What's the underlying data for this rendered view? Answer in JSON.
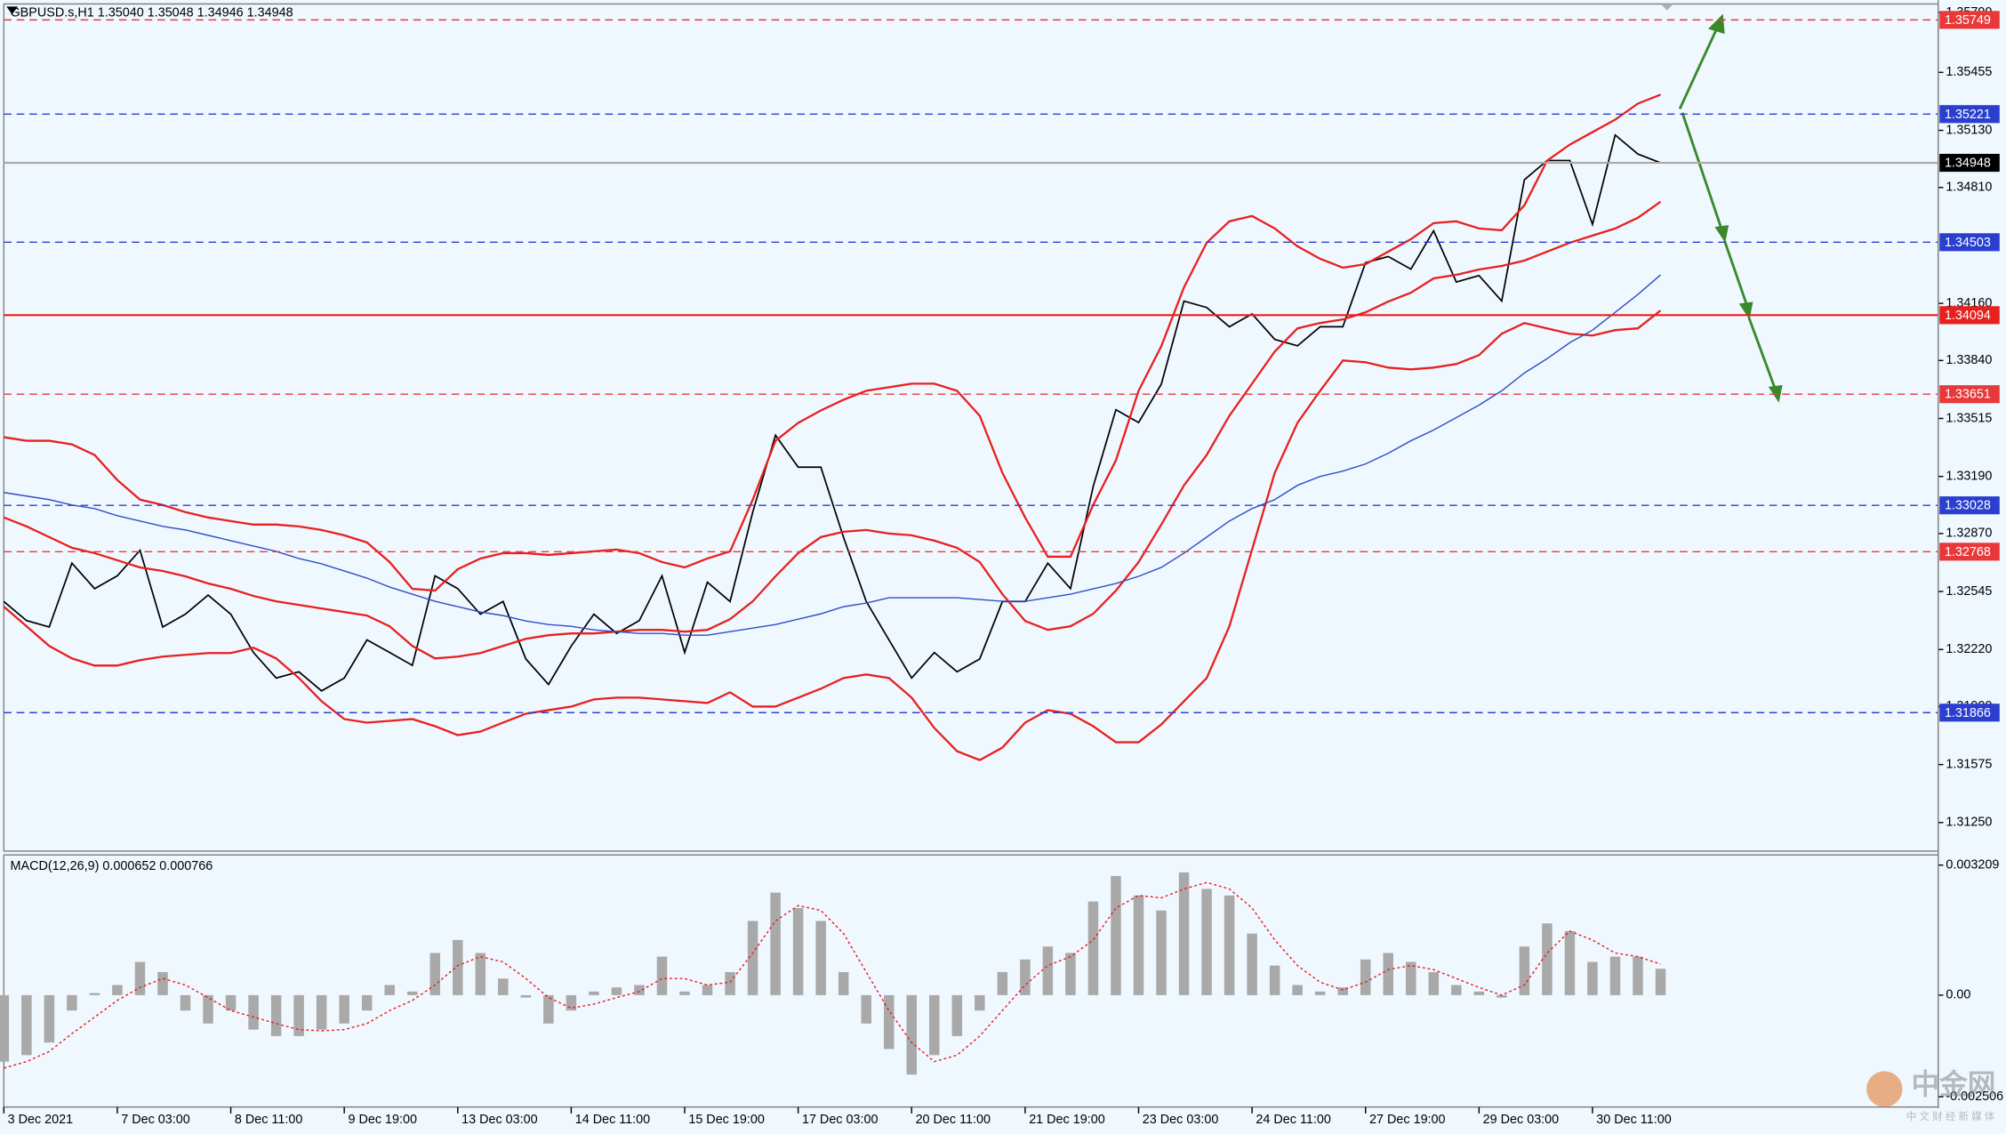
{
  "chart_data": [
    {
      "type": "line",
      "title": "GBPUSD.s,H1  1.35040 1.35048 1.34946 1.34948",
      "categories": [
        "3 Dec 2021",
        null,
        null,
        null,
        null,
        "7 Dec 03:00",
        null,
        null,
        null,
        null,
        "8 Dec 11:00",
        null,
        null,
        null,
        null,
        "9 Dec 19:00",
        null,
        null,
        null,
        null,
        "13 Dec 03:00",
        null,
        null,
        null,
        null,
        "14 Dec 11:00",
        null,
        null,
        null,
        null,
        "15 Dec 19:00",
        null,
        null,
        null,
        null,
        "17 Dec 03:00",
        null,
        null,
        null,
        null,
        "20 Dec 11:00",
        null,
        null,
        null,
        null,
        "21 Dec 19:00",
        null,
        null,
        null,
        null,
        "23 Dec 03:00",
        null,
        null,
        null,
        null,
        "24 Dec 11:00",
        null,
        null,
        null,
        null,
        "27 Dec 19:00",
        null,
        null,
        null,
        null,
        "29 Dec 03:00",
        null,
        null,
        null,
        null,
        "30 Dec 11:00",
        null,
        null,
        null
      ],
      "series": [
        {
          "color": "#000000",
          "width": 1.2,
          "values": [
            1.32489,
            1.32382,
            1.32346,
            1.32704,
            1.32561,
            1.32633,
            1.32776,
            1.32346,
            1.32418,
            1.32525,
            1.32418,
            1.32203,
            1.3206,
            1.32095,
            1.31988,
            1.3206,
            1.32274,
            1.32203,
            1.32131,
            1.32633,
            1.32561,
            1.32418,
            1.32489,
            1.32167,
            1.32024,
            1.32239,
            1.32418,
            1.3231,
            1.32382,
            1.32633,
            1.32203,
            1.32597,
            1.32489,
            1.32991,
            1.33421,
            1.33242,
            1.33242,
            1.32848,
            1.32489,
            1.32274,
            1.3206,
            1.32203,
            1.32095,
            1.32167,
            1.32489,
            1.32489,
            1.32704,
            1.32561,
            1.33134,
            1.33564,
            1.33492,
            1.33707,
            1.34173,
            1.34137,
            1.34029,
            1.34101,
            1.33958,
            1.33922,
            1.34029,
            1.34029,
            1.34388,
            1.34423,
            1.34352,
            1.34567,
            1.3428,
            1.34316,
            1.34173,
            1.34853,
            1.34961,
            1.34961,
            1.34603,
            1.35104,
            1.34997,
            1.34948
          ]
        },
        {
          "color": "#e8201e",
          "width": 1.6,
          "values": [
            1.3341,
            1.3339,
            1.3339,
            1.3337,
            1.3331,
            1.3317,
            1.3306,
            1.3303,
            1.3299,
            1.3296,
            1.3294,
            1.3292,
            1.3292,
            1.3291,
            1.3289,
            1.3286,
            1.3282,
            1.3271,
            1.3256,
            1.3255,
            1.3267,
            1.3273,
            1.3276,
            1.3276,
            1.3275,
            1.3276,
            1.3277,
            1.3278,
            1.3276,
            1.3271,
            1.3268,
            1.3273,
            1.3277,
            1.3306,
            1.3339,
            1.3349,
            1.3356,
            1.3362,
            1.3367,
            1.3369,
            1.3371,
            1.3371,
            1.3367,
            1.3353,
            1.3321,
            1.3296,
            1.3274,
            1.3274,
            1.3303,
            1.3328,
            1.3367,
            1.3392,
            1.3425,
            1.345,
            1.3462,
            1.3465,
            1.3458,
            1.3448,
            1.3441,
            1.3436,
            1.3438,
            1.3445,
            1.3452,
            1.3461,
            1.3462,
            1.3458,
            1.3457,
            1.3471,
            1.3496,
            1.3505,
            1.3512,
            1.3519,
            1.3528,
            1.3533
          ]
        },
        {
          "color": "#e8201e",
          "width": 1.6,
          "values": [
            1.3296,
            1.3291,
            1.3285,
            1.3279,
            1.3276,
            1.3272,
            1.3268,
            1.3266,
            1.3263,
            1.3259,
            1.3256,
            1.3252,
            1.3249,
            1.3247,
            1.3245,
            1.3243,
            1.3241,
            1.3235,
            1.3224,
            1.3217,
            1.3218,
            1.322,
            1.3224,
            1.3228,
            1.323,
            1.3231,
            1.3231,
            1.3232,
            1.3233,
            1.3233,
            1.3232,
            1.3233,
            1.3239,
            1.3249,
            1.3263,
            1.3276,
            1.3285,
            1.3288,
            1.3289,
            1.3287,
            1.3286,
            1.3283,
            1.3279,
            1.3271,
            1.3253,
            1.3238,
            1.3233,
            1.3235,
            1.3242,
            1.3255,
            1.3271,
            1.3292,
            1.3314,
            1.3331,
            1.3353,
            1.3371,
            1.3389,
            1.3402,
            1.3405,
            1.3407,
            1.3411,
            1.3417,
            1.3422,
            1.343,
            1.3432,
            1.3435,
            1.3437,
            1.344,
            1.3445,
            1.345,
            1.3454,
            1.3458,
            1.3464,
            1.3473
          ]
        },
        {
          "color": "#e8201e",
          "width": 1.6,
          "values": [
            1.3246,
            1.3235,
            1.3224,
            1.3217,
            1.3213,
            1.3213,
            1.3216,
            1.3218,
            1.3219,
            1.322,
            1.322,
            1.3223,
            1.3217,
            1.3206,
            1.3193,
            1.3183,
            1.3181,
            1.3182,
            1.3183,
            1.3179,
            1.3174,
            1.3176,
            1.3181,
            1.3186,
            1.3188,
            1.319,
            1.3194,
            1.3195,
            1.3195,
            1.3194,
            1.3193,
            1.3192,
            1.3198,
            1.319,
            1.319,
            1.3195,
            1.32,
            1.3206,
            1.3208,
            1.3206,
            1.3195,
            1.3178,
            1.3165,
            1.316,
            1.3167,
            1.3181,
            1.3188,
            1.3186,
            1.3179,
            1.317,
            1.317,
            1.318,
            1.3193,
            1.3206,
            1.3235,
            1.3278,
            1.3321,
            1.3349,
            1.3367,
            1.3384,
            1.3383,
            1.338,
            1.3379,
            1.338,
            1.3382,
            1.3387,
            1.3399,
            1.3405,
            1.3402,
            1.3399,
            1.3398,
            1.3401,
            1.3402,
            1.3412
          ]
        },
        {
          "color": "#2f4fc8",
          "width": 1,
          "values": [
            1.331,
            1.3308,
            1.3306,
            1.3303,
            1.3301,
            1.3297,
            1.3294,
            1.3291,
            1.3289,
            1.3286,
            1.3283,
            1.328,
            1.3277,
            1.3273,
            1.327,
            1.3266,
            1.3262,
            1.3257,
            1.3253,
            1.3249,
            1.3246,
            1.3243,
            1.3241,
            1.3238,
            1.3236,
            1.3235,
            1.3233,
            1.3232,
            1.3231,
            1.3231,
            1.323,
            1.323,
            1.3232,
            1.3234,
            1.3236,
            1.3239,
            1.3242,
            1.3246,
            1.3248,
            1.3251,
            1.3251,
            1.3251,
            1.3251,
            1.325,
            1.3249,
            1.3249,
            1.3251,
            1.3253,
            1.3256,
            1.3259,
            1.3263,
            1.3268,
            1.3276,
            1.3285,
            1.3294,
            1.3301,
            1.3306,
            1.3314,
            1.3319,
            1.3322,
            1.3326,
            1.3332,
            1.3339,
            1.3345,
            1.3352,
            1.3359,
            1.3367,
            1.3377,
            1.3385,
            1.3394,
            1.3401,
            1.3411,
            1.3421,
            1.3432
          ]
        }
      ],
      "ylim": [
        1.3109,
        1.3586
      ],
      "yticks": [
        {
          "value": 1.3579,
          "label": "1.35790"
        },
        1.35455,
        {
          "value": 1.3513,
          "label": "1.35130"
        },
        {
          "value": 1.3481,
          "label": "1.34810"
        },
        {
          "value": 1.3416,
          "label": "1.34160"
        },
        {
          "value": 1.3384,
          "label": "1.33840"
        },
        1.33515,
        {
          "value": 1.3319,
          "label": "1.33190"
        },
        {
          "value": 1.3287,
          "label": "1.32870"
        },
        1.32545,
        {
          "value": 1.3222,
          "label": "1.32220"
        },
        {
          "value": 1.319,
          "label": "1.31900"
        },
        1.31575,
        {
          "value": 1.3125,
          "label": "1.31250"
        }
      ],
      "levels": [
        {
          "value": 1.35749,
          "color": "#e8393a",
          "dashed": true
        },
        {
          "value": 1.35221,
          "color": "#2b3fcf",
          "dashed": true
        },
        {
          "value": 1.34948,
          "color": "#a8a8a8",
          "dashed": false,
          "label_color": "#000000"
        },
        {
          "value": 1.34503,
          "color": "#2b3fcf",
          "dashed": true
        },
        {
          "value": 1.34094,
          "color": "#e8201e",
          "dashed": false
        },
        {
          "value": 1.33651,
          "color": "#e8393a",
          "dashed": true
        },
        {
          "value": 1.33028,
          "color": "#2b3fcf",
          "dashed": true
        },
        {
          "value": 1.32768,
          "color": "#e8393a",
          "dashed": true
        },
        {
          "value": 1.31866,
          "color": "#2b3fcf",
          "dashed": true
        }
      ]
    },
    {
      "type": "macd",
      "title": "MACD(12,26,9) 0.000652 0.000766",
      "series": [
        {
          "type": "bar",
          "color": "#a9a9a9",
          "values": [
            -0.00164,
            -0.00148,
            -0.00117,
            -0.00038,
            5e-05,
            0.00025,
            0.00082,
            0.00057,
            -0.00038,
            -0.0007,
            -0.00038,
            -0.00085,
            -0.00101,
            -0.00101,
            -0.00085,
            -0.0007,
            -0.00038,
            0.00025,
            9e-05,
            0.00104,
            0.00136,
            0.00104,
            0.00041,
            -6e-05,
            -0.0007,
            -0.00038,
            9e-05,
            0.00019,
            0.00025,
            0.00095,
            9e-05,
            0.00025,
            0.00057,
            0.00183,
            0.00253,
            0.00215,
            0.00183,
            0.00057,
            -0.0007,
            -0.00133,
            -0.00196,
            -0.00148,
            -0.00101,
            -0.00038,
            0.00057,
            0.00088,
            0.0012,
            0.00104,
            0.00231,
            0.00294,
            0.00246,
            0.00209,
            0.00303,
            0.00262,
            0.00246,
            0.00152,
            0.00073,
            0.00025,
            9e-05,
            0.00019,
            0.00088,
            0.00104,
            0.00082,
            0.00057,
            0.00025,
            9e-05,
            -6e-05,
            0.0012,
            0.00177,
            0.00158,
            0.00082,
            0.00095,
            0.00095,
            0.000652
          ]
        },
        {
          "type": "line",
          "color": "#e8201e",
          "values": [
            -0.0018,
            -0.00164,
            -0.00139,
            -0.00095,
            -0.00054,
            -0.00013,
            0.00019,
            0.00041,
            0.00025,
            -6e-05,
            -0.00038,
            -0.00054,
            -0.0007,
            -0.00085,
            -0.00088,
            -0.00085,
            -0.0007,
            -0.00038,
            -0.00013,
            0.00025,
            0.00073,
            0.00095,
            0.00082,
            0.00041,
            -6e-05,
            -0.00032,
            -0.00022,
            -6e-05,
            9e-05,
            0.00041,
            0.00041,
            0.00025,
            0.00032,
            0.00104,
            0.00183,
            0.00221,
            0.00209,
            0.00152,
            0.00057,
            -0.00038,
            -0.00117,
            -0.00164,
            -0.00148,
            -0.00101,
            -0.00038,
            0.00025,
            0.00073,
            0.00095,
            0.00136,
            0.00215,
            0.00246,
            0.0024,
            0.00262,
            0.00278,
            0.00262,
            0.00215,
            0.00136,
            0.00073,
            0.00032,
            0.00013,
            0.00032,
            0.00063,
            0.00073,
            0.00063,
            0.00041,
            0.00019,
            0,
            0.00025,
            0.00104,
            0.00158,
            0.00136,
            0.00104,
            0.00095,
            0.000766
          ]
        }
      ],
      "ylim": [
        -0.00276,
        0.00346
      ],
      "yticks": [
        0.003209,
        {
          "value": 0,
          "label": "0.00"
        },
        -0.002506
      ]
    }
  ],
  "watermark": {
    "text": "中金网",
    "subtext": "中 文 财 经 新 媒 体"
  }
}
